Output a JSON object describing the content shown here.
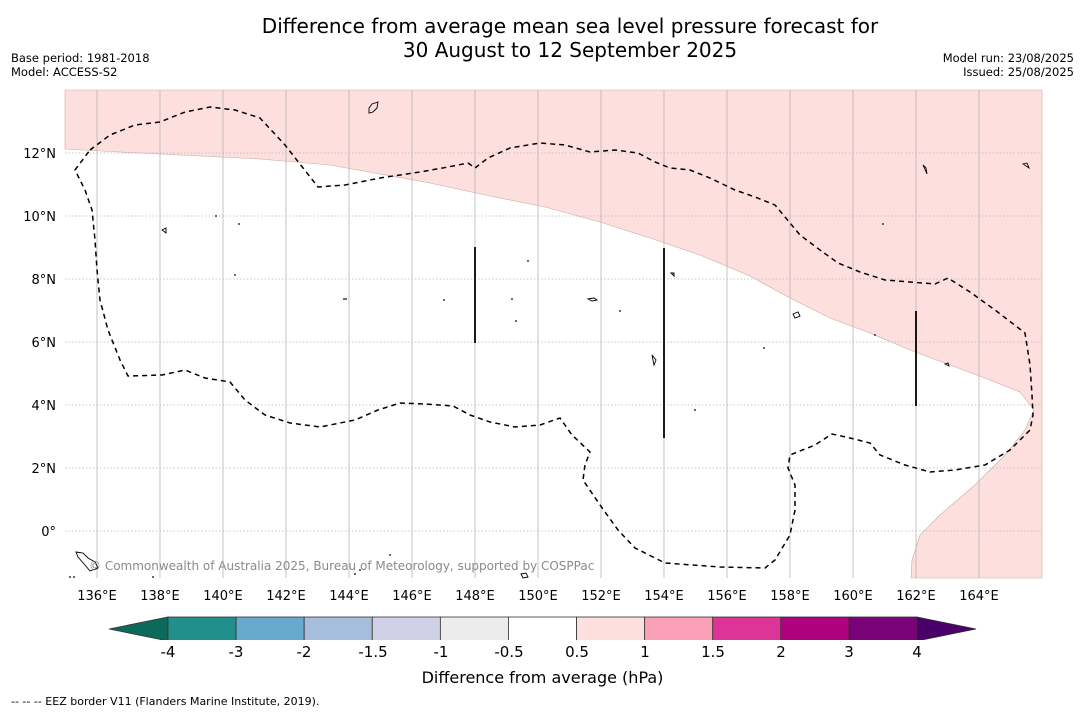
{
  "title_line1": "Difference from average mean sea level pressure forecast for",
  "title_line2": "30 August to 12 September 2025",
  "meta_left": {
    "base_period": "Base period: 1981-2018",
    "model": "Model: ACCESS-S2"
  },
  "meta_right": {
    "model_run": "Model run: 23/08/2025",
    "issued": "Issued: 25/08/2025"
  },
  "map": {
    "lon_labels": [
      "136°E",
      "138°E",
      "140°E",
      "142°E",
      "144°E",
      "146°E",
      "148°E",
      "150°E",
      "152°E",
      "154°E",
      "156°E",
      "158°E",
      "160°E",
      "162°E",
      "164°E"
    ],
    "lat_labels": [
      "0°",
      "2°N",
      "4°N",
      "6°N",
      "8°N",
      "10°N",
      "12°N"
    ],
    "copyright": "© Commonwealth of Australia 2025, Bureau of Meteorology, supported by COSPPac",
    "fill_color_positive_small": "#fde0dd",
    "background_color": "#ffffff"
  },
  "colorbar": {
    "title": "Difference from average (hPa)",
    "labels": [
      "-4",
      "-3",
      "-2",
      "-1.5",
      "-1",
      "-0.5",
      "0.5",
      "1",
      "1.5",
      "2",
      "3",
      "4"
    ],
    "colors": [
      "#21908c",
      "#67a9cf",
      "#a6bddb",
      "#d0d1e6",
      "#ececec",
      "#ffffff",
      "#fde0dd",
      "#fa9fb5",
      "#dd3497",
      "#ae017e",
      "#7a0177"
    ],
    "under_color": "#0b6a5a",
    "over_color": "#49006a"
  },
  "footnote": "--  --  -- EEZ border V11 (Flanders Marine Institute, 2019)."
}
